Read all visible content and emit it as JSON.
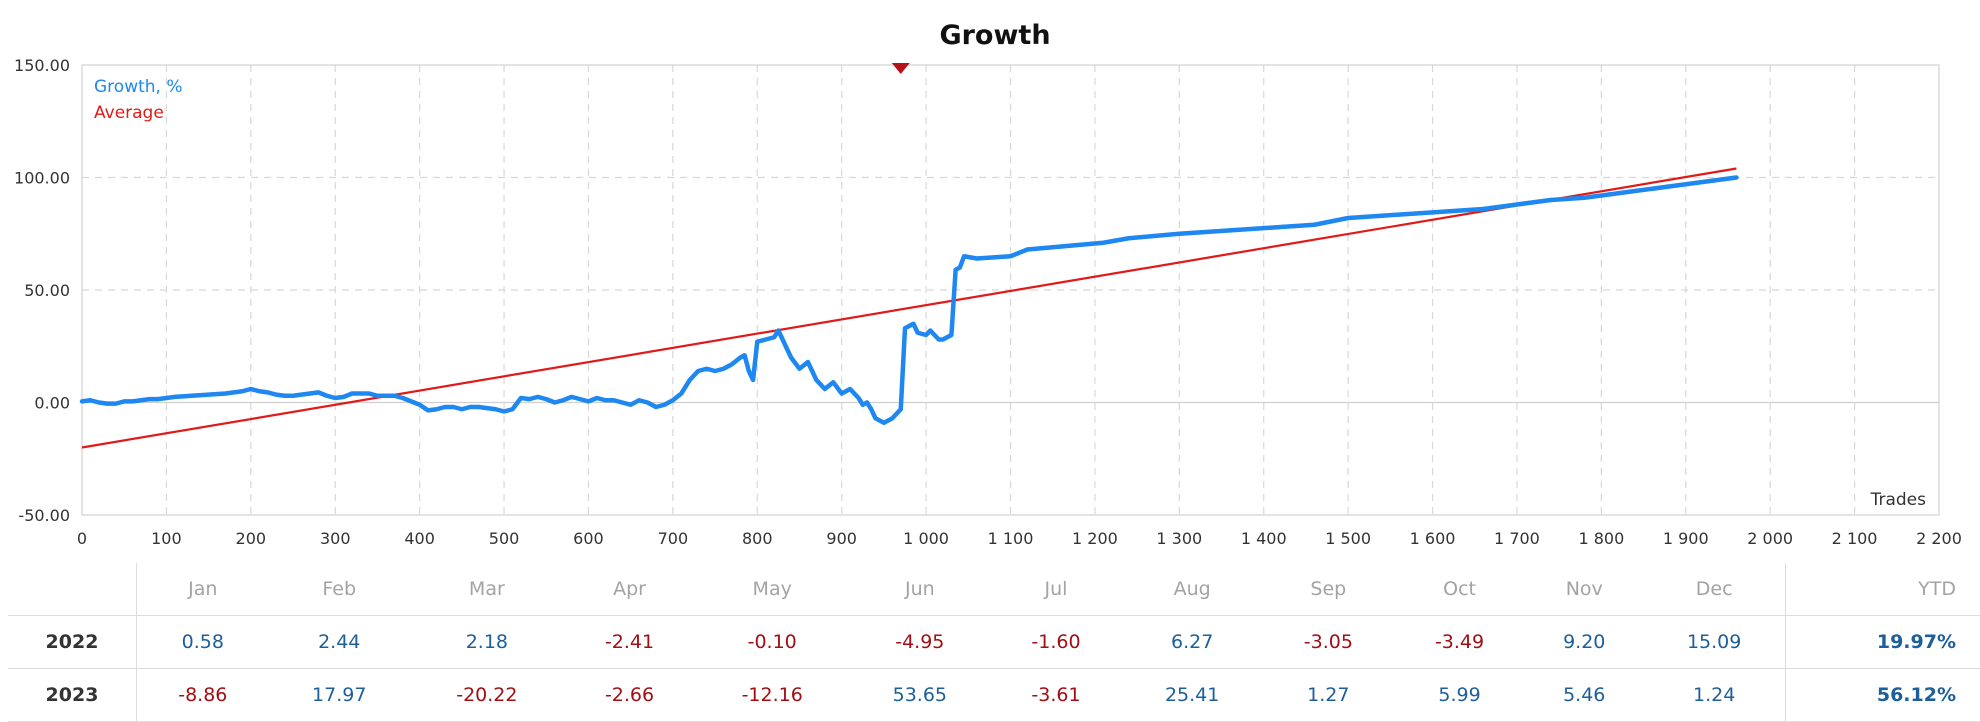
{
  "chart_data": {
    "type": "line",
    "title": "Growth",
    "xlabel": "Trades",
    "ylabel": "",
    "xlim": [
      0,
      2200
    ],
    "ylim": [
      -50,
      150
    ],
    "x_ticks": [
      0,
      100,
      200,
      300,
      400,
      500,
      600,
      700,
      800,
      900,
      1000,
      1100,
      1200,
      1300,
      1400,
      1500,
      1600,
      1700,
      1800,
      1900,
      2000,
      2100,
      2200
    ],
    "x_tick_labels": [
      "0",
      "100",
      "200",
      "300",
      "400",
      "500",
      "600",
      "700",
      "800",
      "900",
      "1 000",
      "1 100",
      "1 200",
      "1 300",
      "1 400",
      "1 500",
      "1 600",
      "1 700",
      "1 800",
      "1 900",
      "2 000",
      "2 100",
      "2 200"
    ],
    "y_ticks": [
      -50,
      0,
      50,
      100,
      150
    ],
    "y_tick_labels": [
      "-50.00",
      "0.00",
      "50.00",
      "100.00",
      "150.00"
    ],
    "grid": true,
    "legend_position": "top-left",
    "marker": {
      "x": 970,
      "y": 150,
      "color": "#b5121b"
    },
    "series": [
      {
        "name": "Growth, %",
        "color": "#1e88f0",
        "points": [
          [
            0,
            0.5
          ],
          [
            10,
            1
          ],
          [
            20,
            0
          ],
          [
            30,
            -0.5
          ],
          [
            40,
            -0.5
          ],
          [
            50,
            0.5
          ],
          [
            60,
            0.5
          ],
          [
            70,
            1
          ],
          [
            80,
            1.5
          ],
          [
            90,
            1.5
          ],
          [
            100,
            2
          ],
          [
            110,
            2.5
          ],
          [
            130,
            3
          ],
          [
            150,
            3.5
          ],
          [
            170,
            4
          ],
          [
            190,
            5
          ],
          [
            200,
            6
          ],
          [
            210,
            5
          ],
          [
            220,
            4.5
          ],
          [
            230,
            3.5
          ],
          [
            240,
            3
          ],
          [
            250,
            3
          ],
          [
            260,
            3.5
          ],
          [
            270,
            4
          ],
          [
            280,
            4.5
          ],
          [
            290,
            3
          ],
          [
            300,
            2
          ],
          [
            310,
            2.5
          ],
          [
            320,
            4
          ],
          [
            340,
            4
          ],
          [
            350,
            3
          ],
          [
            370,
            3
          ],
          [
            380,
            2
          ],
          [
            390,
            0.5
          ],
          [
            400,
            -1
          ],
          [
            410,
            -3.5
          ],
          [
            420,
            -3
          ],
          [
            430,
            -2
          ],
          [
            440,
            -2
          ],
          [
            450,
            -3
          ],
          [
            460,
            -2
          ],
          [
            470,
            -2
          ],
          [
            480,
            -2.5
          ],
          [
            490,
            -3
          ],
          [
            500,
            -4
          ],
          [
            510,
            -3
          ],
          [
            520,
            2
          ],
          [
            530,
            1.5
          ],
          [
            540,
            2.5
          ],
          [
            550,
            1.5
          ],
          [
            560,
            0
          ],
          [
            570,
            1
          ],
          [
            580,
            2.5
          ],
          [
            590,
            1.5
          ],
          [
            600,
            0.5
          ],
          [
            610,
            2
          ],
          [
            620,
            1
          ],
          [
            630,
            1
          ],
          [
            640,
            0
          ],
          [
            650,
            -1
          ],
          [
            660,
            1
          ],
          [
            670,
            0
          ],
          [
            680,
            -2
          ],
          [
            690,
            -1
          ],
          [
            700,
            1
          ],
          [
            710,
            4
          ],
          [
            720,
            10
          ],
          [
            730,
            14
          ],
          [
            740,
            15
          ],
          [
            750,
            14
          ],
          [
            760,
            15
          ],
          [
            770,
            17
          ],
          [
            780,
            20
          ],
          [
            785,
            21
          ],
          [
            790,
            14
          ],
          [
            795,
            10
          ],
          [
            800,
            27
          ],
          [
            810,
            28
          ],
          [
            820,
            29
          ],
          [
            825,
            32
          ],
          [
            830,
            28
          ],
          [
            840,
            20
          ],
          [
            850,
            15
          ],
          [
            860,
            18
          ],
          [
            870,
            10
          ],
          [
            880,
            6
          ],
          [
            890,
            9
          ],
          [
            900,
            4
          ],
          [
            910,
            6
          ],
          [
            920,
            2
          ],
          [
            925,
            -1
          ],
          [
            930,
            0
          ],
          [
            935,
            -3
          ],
          [
            940,
            -7
          ],
          [
            945,
            -8
          ],
          [
            950,
            -9
          ],
          [
            960,
            -7
          ],
          [
            970,
            -3
          ],
          [
            975,
            33
          ],
          [
            985,
            35
          ],
          [
            990,
            31
          ],
          [
            1000,
            30
          ],
          [
            1005,
            32
          ],
          [
            1015,
            28
          ],
          [
            1020,
            28
          ],
          [
            1030,
            30
          ],
          [
            1035,
            59
          ],
          [
            1040,
            60
          ],
          [
            1045,
            65
          ],
          [
            1060,
            64
          ],
          [
            1100,
            65
          ],
          [
            1120,
            68
          ],
          [
            1150,
            69
          ],
          [
            1180,
            70
          ],
          [
            1210,
            71
          ],
          [
            1240,
            73
          ],
          [
            1270,
            74
          ],
          [
            1300,
            75
          ],
          [
            1340,
            76
          ],
          [
            1380,
            77
          ],
          [
            1420,
            78
          ],
          [
            1460,
            79
          ],
          [
            1500,
            82
          ],
          [
            1540,
            83
          ],
          [
            1580,
            84
          ],
          [
            1620,
            85
          ],
          [
            1660,
            86
          ],
          [
            1700,
            88
          ],
          [
            1740,
            90
          ],
          [
            1780,
            91
          ],
          [
            1820,
            93
          ],
          [
            1860,
            95
          ],
          [
            1900,
            97
          ],
          [
            1940,
            99
          ],
          [
            1960,
            100
          ]
        ]
      },
      {
        "name": "Average",
        "color": "#e01a1a",
        "points": [
          [
            0,
            -20
          ],
          [
            1960,
            104
          ]
        ]
      }
    ]
  },
  "returns_table": {
    "year_header": "",
    "months": [
      "Jan",
      "Feb",
      "Mar",
      "Apr",
      "May",
      "Jun",
      "Jul",
      "Aug",
      "Sep",
      "Oct",
      "Nov",
      "Dec"
    ],
    "ytd_label": "YTD",
    "rows": [
      {
        "year": "2022",
        "values": [
          "0.58",
          "2.44",
          "2.18",
          "-2.41",
          "-0.10",
          "-4.95",
          "-1.60",
          "6.27",
          "-3.05",
          "-3.49",
          "9.20",
          "15.09"
        ],
        "ytd": "19.97%"
      },
      {
        "year": "2023",
        "values": [
          "-8.86",
          "17.97",
          "-20.22",
          "-2.66",
          "-12.16",
          "53.65",
          "-3.61",
          "25.41",
          "1.27",
          "5.99",
          "5.46",
          "1.24"
        ],
        "ytd": "56.12%"
      }
    ]
  },
  "colors": {
    "positive": "#1c5f9a",
    "negative": "#a10f14"
  }
}
